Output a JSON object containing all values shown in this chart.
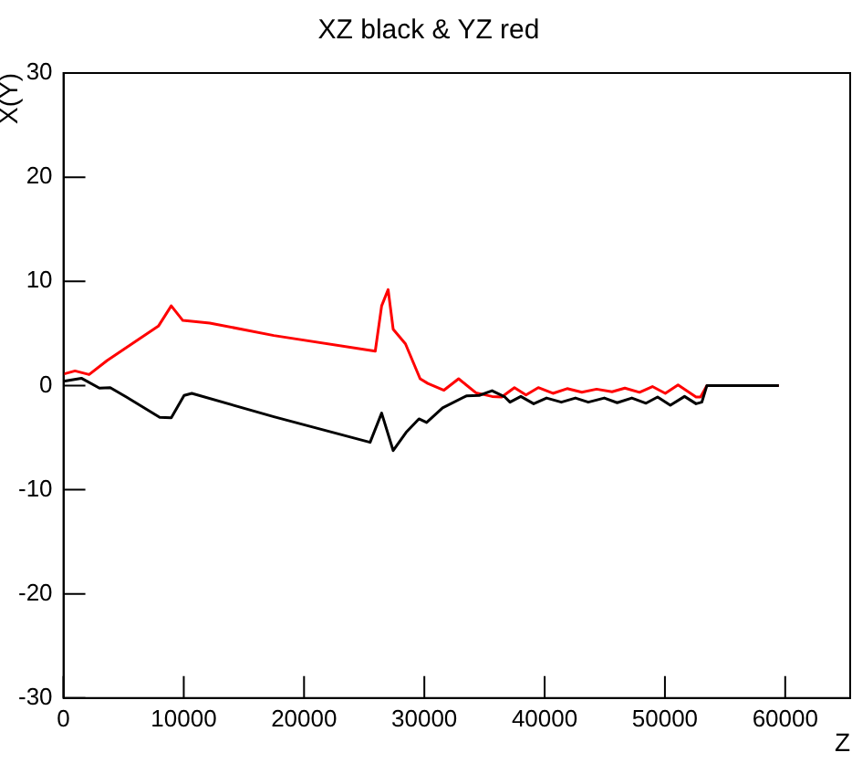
{
  "chart_data": {
    "type": "line",
    "title": "XZ black & YZ red",
    "xlabel": "Z",
    "ylabel": "X(Y)",
    "xlim": [
      0,
      65400
    ],
    "ylim": [
      -30,
      30
    ],
    "xticks": [
      0,
      10000,
      20000,
      30000,
      40000,
      50000,
      60000
    ],
    "yticks": [
      -30,
      -20,
      -10,
      0,
      10,
      20,
      30
    ],
    "grid": false,
    "legend": false,
    "marker": "none",
    "line_style": "solid",
    "series": [
      {
        "color": "#000000",
        "x": [
          0,
          1490,
          2990,
          3890,
          5230,
          8000,
          8960,
          10030,
          10670,
          17490,
          25490,
          26450,
          27410,
          28480,
          29550,
          30190,
          31520,
          33490,
          34560,
          35630,
          36690,
          37120,
          38020,
          39090,
          40160,
          41390,
          42560,
          43630,
          44960,
          46030,
          47250,
          48430,
          49390,
          50450,
          51630,
          52590,
          53070,
          53490,
          59470
        ],
        "values": [
          0.4,
          0.7,
          -0.25,
          -0.2,
          -1.1,
          -3.05,
          -3.1,
          -0.95,
          -0.75,
          -3.0,
          -5.45,
          -2.65,
          -6.25,
          -4.5,
          -3.2,
          -3.55,
          -2.15,
          -1.0,
          -0.95,
          -0.5,
          -1.1,
          -1.6,
          -1.05,
          -1.75,
          -1.2,
          -1.6,
          -1.2,
          -1.6,
          -1.2,
          -1.65,
          -1.2,
          -1.7,
          -1.1,
          -1.9,
          -1.05,
          -1.75,
          -1.6,
          0,
          0
        ]
      },
      {
        "color": "#ff0000",
        "x": [
          0,
          960,
          2130,
          3630,
          7890,
          8960,
          9920,
          12160,
          17490,
          25920,
          26450,
          26990,
          27410,
          28430,
          29650,
          30290,
          31630,
          32850,
          34290,
          35630,
          36430,
          37490,
          38450,
          39470,
          40690,
          41870,
          43090,
          44320,
          45600,
          46670,
          47890,
          48960,
          50030,
          51090,
          52590,
          52960,
          53490,
          59470
        ],
        "values": [
          1.1,
          1.4,
          1.05,
          2.4,
          5.7,
          7.65,
          6.25,
          6.0,
          4.8,
          3.3,
          7.65,
          9.2,
          5.4,
          4.0,
          0.65,
          0.2,
          -0.45,
          0.65,
          -0.7,
          -1.05,
          -1.1,
          -0.2,
          -0.9,
          -0.2,
          -0.75,
          -0.3,
          -0.65,
          -0.35,
          -0.6,
          -0.25,
          -0.65,
          -0.1,
          -0.75,
          0.05,
          -1.1,
          -1.1,
          0,
          0
        ]
      }
    ]
  }
}
